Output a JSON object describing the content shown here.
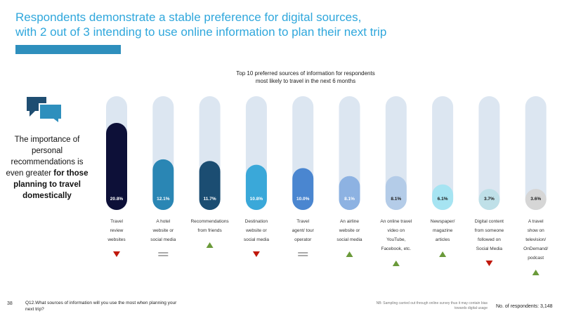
{
  "headline": {
    "line1": "Respondents demonstrate a stable preference for digital sources,",
    "line2": "with 2 out of 3 intending to use online information to plan their next trip"
  },
  "side": {
    "icon": "speech-bubbles-icon",
    "text_plain": "The importance of personal recommendations is even greater ",
    "text_bold": "for those planning to travel domestically"
  },
  "chart_data": {
    "type": "bar",
    "title_line1": "Top 10 preferred sources of information for respondents",
    "title_line2": "most likely to travel in the next 6 months",
    "ylim": [
      0,
      25
    ],
    "categories": [
      [
        "Travel",
        "review",
        "websites"
      ],
      [
        "A hotel",
        "website or",
        "social media"
      ],
      [
        "Recommendations",
        "from friends"
      ],
      [
        "Destination",
        "website or",
        "social media"
      ],
      [
        "Travel",
        "agent/ tour",
        "operator"
      ],
      [
        "An airline",
        "website or",
        "social media"
      ],
      [
        "An online travel",
        "video on",
        "YouTube,",
        "Facebook, etc."
      ],
      [
        "Newspaper/",
        "magazine",
        "articles"
      ],
      [
        "Digital content",
        "from someone",
        "followed on",
        "Social Media"
      ],
      [
        "A travel",
        "show on",
        "television/",
        "OnDemand/",
        "podcast"
      ]
    ],
    "values": [
      20.8,
      12.1,
      11.7,
      10.8,
      10.0,
      8.1,
      8.1,
      6.1,
      3.7,
      3.6
    ],
    "labels": [
      "20.8%",
      "12.1%",
      "11.7%",
      "10.8%",
      "10.0%",
      "8.1%",
      "8.1%",
      "6.1%",
      "3.7%",
      "3.6%"
    ],
    "trends": [
      "down",
      "flat",
      "up",
      "down",
      "flat",
      "up",
      "up",
      "up",
      "down",
      "up"
    ],
    "colors": [
      "#0d1038",
      "#2a86b4",
      "#1b4d72",
      "#3aa8d9",
      "#4a86d0",
      "#8db2e2",
      "#b4cce8",
      "#a6e4f2",
      "#bfe0e8",
      "#d6d6d6"
    ],
    "label_colors": [
      "#ffffff",
      "#ffffff",
      "#ffffff",
      "#ffffff",
      "#ffffff",
      "#ffffff",
      "#1a1a1a",
      "#1a1a1a",
      "#1a1a1a",
      "#1a1a1a"
    ],
    "track_color": "#dce6f1",
    "up_color": "#6a9a3a",
    "down_color": "#c0180c",
    "flat_color": "#555555"
  },
  "footer": {
    "page_number": "38",
    "question": "Q12.What sources of information will you use the most when planning your next trip?",
    "note": "NB: Sampling carried out through online survey thus it may contain bias towards digital usage",
    "respondents": "No. of respondents: 3,148"
  }
}
